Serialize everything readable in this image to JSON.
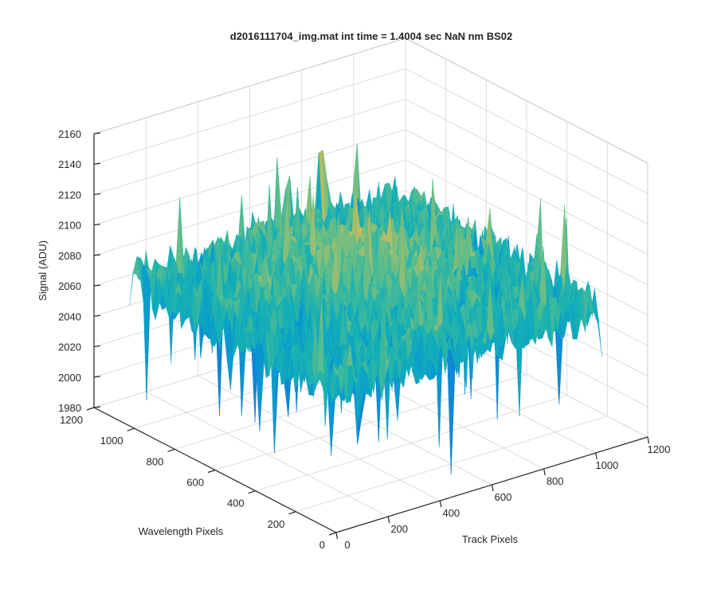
{
  "chart_data": {
    "type": "surface",
    "title": "d2016111704_img.mat int time = 1.4004 sec  NaN nm BS02",
    "xlabel": "Track Pixels",
    "ylabel": "Wavelength Pixels",
    "zlabel": "Signal (ADU)",
    "xlim": [
      0,
      1200
    ],
    "ylim": [
      0,
      1200
    ],
    "zlim": [
      1980,
      2160
    ],
    "x_ticks": [
      0,
      200,
      400,
      600,
      800,
      1000,
      1200
    ],
    "y_ticks": [
      0,
      200,
      400,
      600,
      800,
      1000,
      1200
    ],
    "z_ticks": [
      1980,
      2000,
      2020,
      2040,
      2060,
      2080,
      2100,
      2120,
      2140,
      2160
    ],
    "grid": true,
    "colormap": "parula",
    "surface": {
      "x_extent": [
        0,
        1024
      ],
      "y_extent": [
        0,
        1024
      ],
      "mean_signal": 2075,
      "min_signal": 1985,
      "max_signal": 2150
    }
  }
}
